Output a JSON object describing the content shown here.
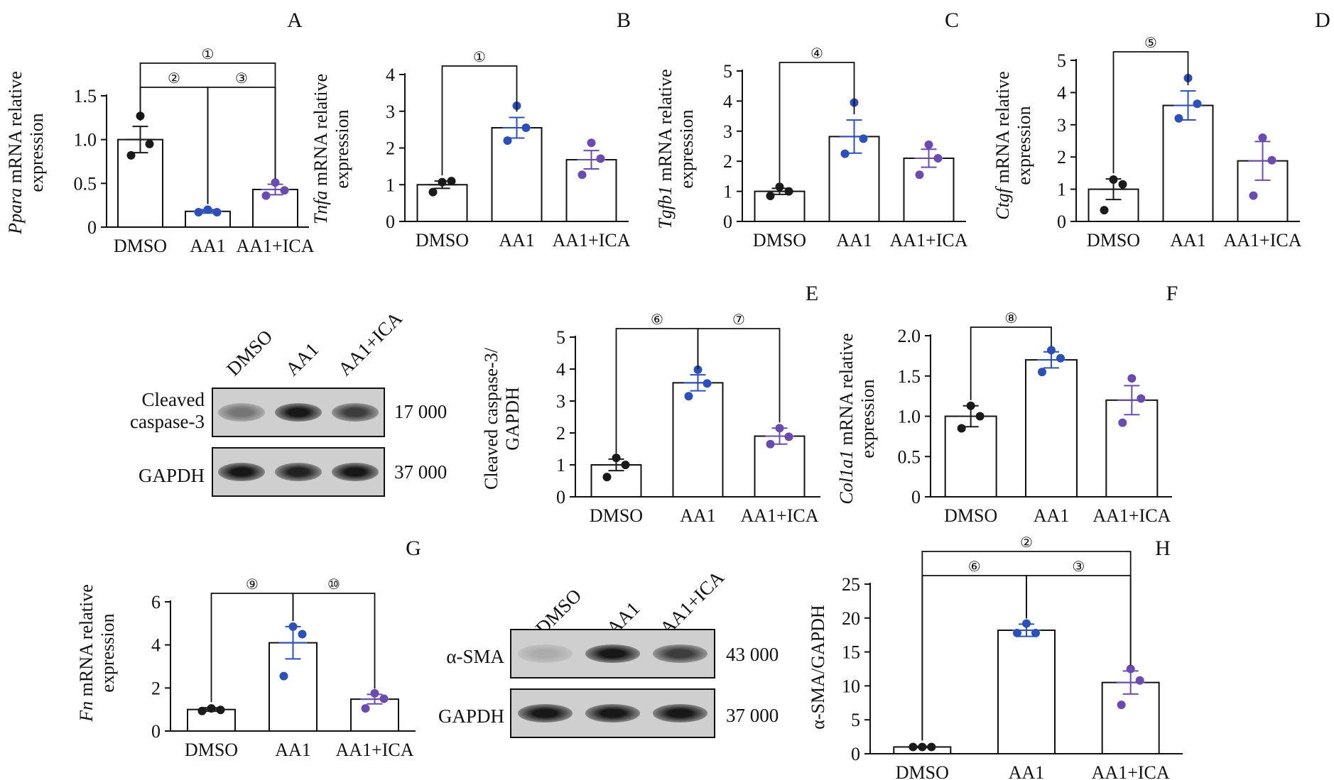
{
  "charts": [
    {
      "id": "A",
      "panel_letter": "A",
      "ylabel_italic": "Ppara",
      "ylabel_rest": " mRNA relative",
      "ylabel_line2": "expression",
      "yticks": [
        "0",
        "0.5",
        "1.0",
        "1.5"
      ],
      "categories": [
        "DMSO",
        "AA1",
        "AA1+ICA"
      ],
      "brackets": [
        {
          "label": "①",
          "from": 0,
          "to": 2,
          "level": 1
        },
        {
          "label": "②",
          "from": 0,
          "to": 1,
          "level": 0
        },
        {
          "label": "③",
          "from": 1,
          "to": 2,
          "level": 0
        }
      ]
    },
    {
      "id": "B",
      "panel_letter": "B",
      "ylabel_italic": "Tnfa",
      "ylabel_rest": " mRNA relative",
      "ylabel_line2": "expression",
      "yticks": [
        "0",
        "1",
        "2",
        "3",
        "4"
      ],
      "categories": [
        "DMSO",
        "AA1",
        "AA1+ICA"
      ],
      "brackets": [
        {
          "label": "①",
          "from": 0,
          "to": 1,
          "level": 0
        }
      ]
    },
    {
      "id": "C",
      "panel_letter": "C",
      "ylabel_italic": "Tgfb1",
      "ylabel_rest": " mRNA relative",
      "ylabel_line2": "expression",
      "yticks": [
        "0",
        "1",
        "2",
        "3",
        "4",
        "5"
      ],
      "categories": [
        "DMSO",
        "AA1",
        "AA1+ICA"
      ],
      "brackets": [
        {
          "label": "④",
          "from": 0,
          "to": 1,
          "level": 0
        }
      ]
    },
    {
      "id": "D",
      "panel_letter": "D",
      "ylabel_italic": "Ctgf",
      "ylabel_rest": " mRNA relative",
      "ylabel_line2": "expression",
      "yticks": [
        "0",
        "1",
        "2",
        "3",
        "4",
        "5"
      ],
      "categories": [
        "DMSO",
        "AA1",
        "AA1+ICA"
      ],
      "brackets": [
        {
          "label": "⑤",
          "from": 0,
          "to": 1,
          "level": 0
        }
      ]
    },
    {
      "id": "E",
      "panel_letter": "E",
      "ylabel_italic": "",
      "ylabel_rest": "Cleaved caspase-3/",
      "ylabel_line2": "GAPDH",
      "yticks": [
        "0",
        "1",
        "2",
        "3",
        "4",
        "5"
      ],
      "categories": [
        "DMSO",
        "AA1",
        "AA1+ICA"
      ],
      "brackets": [
        {
          "label": "⑥",
          "from": 0,
          "to": 1,
          "level": 0
        },
        {
          "label": "⑦",
          "from": 1,
          "to": 2,
          "level": 0
        }
      ]
    },
    {
      "id": "F",
      "panel_letter": "F",
      "ylabel_italic": "Col1a1",
      "ylabel_rest": " mRNA relative",
      "ylabel_line2": "expression",
      "yticks": [
        "0",
        "0.5",
        "1.0",
        "1.5",
        "2.0"
      ],
      "categories": [
        "DMSO",
        "AA1",
        "AA1+ICA"
      ],
      "brackets": [
        {
          "label": "⑧",
          "from": 0,
          "to": 1,
          "level": 0
        }
      ]
    },
    {
      "id": "G",
      "panel_letter": "G",
      "ylabel_italic": "Fn",
      "ylabel_rest": " mRNA relative",
      "ylabel_line2": "expression",
      "yticks": [
        "0",
        "2",
        "4",
        "6"
      ],
      "categories": [
        "DMSO",
        "AA1",
        "AA1+ICA"
      ],
      "brackets": [
        {
          "label": "⑨",
          "from": 0,
          "to": 1,
          "level": 0
        },
        {
          "label": "⑩",
          "from": 1,
          "to": 2,
          "level": 0
        }
      ]
    },
    {
      "id": "H",
      "panel_letter": "H",
      "ylabel_italic": "",
      "ylabel_rest": "α-SMA/GAPDH",
      "ylabel_line2": "",
      "yticks": [
        "0",
        "5",
        "10",
        "15",
        "20",
        "25"
      ],
      "categories": [
        "DMSO",
        "AA1",
        "AA1+ICA"
      ],
      "brackets": [
        {
          "label": "②",
          "from": 0,
          "to": 2,
          "level": 1
        },
        {
          "label": "⑥",
          "from": 0,
          "to": 1,
          "level": 0
        },
        {
          "label": "③",
          "from": 1,
          "to": 2,
          "level": 0
        }
      ]
    }
  ],
  "chart_data": [
    {
      "id": "A",
      "type": "bar",
      "categories": [
        "DMSO",
        "AA1",
        "AA1+ICA"
      ],
      "ylabel": "Ppara mRNA relative expression",
      "ylim": [
        0,
        1.5
      ],
      "values": [
        1.0,
        0.18,
        0.43
      ],
      "sem": [
        0.15,
        0.02,
        0.06
      ],
      "points": [
        [
          1.27,
          0.95,
          0.82
        ],
        [
          0.2,
          0.17,
          0.17
        ],
        [
          0.51,
          0.42,
          0.36
        ]
      ],
      "point_colors": [
        "#1a1a1a",
        "#2c4fb8",
        "#6a4bb0"
      ]
    },
    {
      "id": "B",
      "type": "bar",
      "categories": [
        "DMSO",
        "AA1",
        "AA1+ICA"
      ],
      "ylabel": "Tnfa mRNA relative expression",
      "ylim": [
        0,
        4
      ],
      "values": [
        1.0,
        2.55,
        1.68
      ],
      "sem": [
        0.1,
        0.28,
        0.25
      ],
      "points": [
        [
          1.07,
          1.1,
          0.8
        ],
        [
          3.15,
          2.55,
          2.2
        ],
        [
          2.14,
          1.71,
          1.27
        ]
      ],
      "point_colors": [
        "#1a1a1a",
        "#2c4fb8",
        "#6a4bb0"
      ]
    },
    {
      "id": "C",
      "type": "bar",
      "categories": [
        "DMSO",
        "AA1",
        "AA1+ICA"
      ],
      "ylabel": "Tgfb1 mRNA relative expression",
      "ylim": [
        0,
        5
      ],
      "values": [
        1.0,
        2.82,
        2.1
      ],
      "sem": [
        0.1,
        0.55,
        0.3
      ],
      "points": [
        [
          1.15,
          1.0,
          0.85
        ],
        [
          3.95,
          2.75,
          2.25
        ],
        [
          2.55,
          2.1,
          1.55
        ]
      ],
      "point_colors": [
        "#1a1a1a",
        "#2c4fb8",
        "#6a4bb0"
      ]
    },
    {
      "id": "D",
      "type": "bar",
      "categories": [
        "DMSO",
        "AA1",
        "AA1+ICA"
      ],
      "ylabel": "Ctgf mRNA relative expression",
      "ylim": [
        0,
        5
      ],
      "values": [
        1.0,
        3.6,
        1.88
      ],
      "sem": [
        0.32,
        0.45,
        0.6
      ],
      "points": [
        [
          1.3,
          1.15,
          0.35
        ],
        [
          4.45,
          3.65,
          3.2
        ],
        [
          2.6,
          1.9,
          0.8
        ]
      ],
      "point_colors": [
        "#1a1a1a",
        "#2c4fb8",
        "#6a4bb0"
      ]
    },
    {
      "id": "E",
      "type": "bar",
      "categories": [
        "DMSO",
        "AA1",
        "AA1+ICA"
      ],
      "ylabel": "Cleaved caspase-3/GAPDH",
      "ylim": [
        0,
        5
      ],
      "values": [
        1.0,
        3.57,
        1.9
      ],
      "sem": [
        0.18,
        0.25,
        0.25
      ],
      "points": [
        [
          1.22,
          1.0,
          0.62
        ],
        [
          3.98,
          3.55,
          3.15
        ],
        [
          2.15,
          1.88,
          1.65
        ]
      ],
      "point_colors": [
        "#1a1a1a",
        "#2c4fb8",
        "#6a4bb0"
      ]
    },
    {
      "id": "F",
      "type": "bar",
      "categories": [
        "DMSO",
        "AA1",
        "AA1+ICA"
      ],
      "ylabel": "Col1a1 mRNA relative expression",
      "ylim": [
        0,
        2.0
      ],
      "values": [
        1.0,
        1.7,
        1.2
      ],
      "sem": [
        0.13,
        0.1,
        0.18
      ],
      "points": [
        [
          1.13,
          1.0,
          0.85
        ],
        [
          1.82,
          1.72,
          1.55
        ],
        [
          1.47,
          1.22,
          0.92
        ]
      ],
      "point_colors": [
        "#1a1a1a",
        "#2c4fb8",
        "#6a4bb0"
      ]
    },
    {
      "id": "G",
      "type": "bar",
      "categories": [
        "DMSO",
        "AA1",
        "AA1+ICA"
      ],
      "ylabel": "Fn mRNA relative expression",
      "ylim": [
        0,
        6
      ],
      "values": [
        1.0,
        4.1,
        1.48
      ],
      "sem": [
        0.08,
        0.75,
        0.22
      ],
      "points": [
        [
          1.05,
          0.98,
          0.93
        ],
        [
          4.85,
          4.5,
          2.55
        ],
        [
          1.75,
          1.5,
          1.05
        ]
      ],
      "point_colors": [
        "#1a1a1a",
        "#2c4fb8",
        "#6a4bb0"
      ]
    },
    {
      "id": "H",
      "type": "bar",
      "categories": [
        "DMSO",
        "AA1",
        "AA1+ICA"
      ],
      "ylabel": "α-SMA/GAPDH",
      "ylim": [
        0,
        25
      ],
      "values": [
        1.0,
        18.2,
        10.5
      ],
      "sem": [
        0.1,
        0.9,
        1.7
      ],
      "points": [
        [
          1.0,
          1.0,
          1.0
        ],
        [
          19.2,
          17.8,
          17.8
        ],
        [
          12.5,
          10.8,
          7.2
        ]
      ],
      "point_colors": [
        "#1a1a1a",
        "#2c4fb8",
        "#6a4bb0"
      ]
    }
  ],
  "blots": [
    {
      "id": "blot1",
      "lanes": [
        "DMSO",
        "AA1",
        "AA1+ICA"
      ],
      "rows": [
        {
          "label": "Cleaved caspase-3",
          "mw": "17 000",
          "intensity": [
            0.45,
            0.95,
            0.75
          ]
        },
        {
          "label": "GAPDH",
          "mw": "37 000",
          "intensity": [
            0.95,
            0.9,
            0.95
          ]
        }
      ]
    },
    {
      "id": "blot2",
      "lanes": [
        "DMSO",
        "AA1",
        "AA1+ICA"
      ],
      "rows": [
        {
          "label": "α-SMA",
          "mw": "43 000",
          "intensity": [
            0.15,
            0.95,
            0.75
          ]
        },
        {
          "label": "GAPDH",
          "mw": "37 000",
          "intensity": [
            0.95,
            0.95,
            0.95
          ]
        }
      ]
    }
  ]
}
